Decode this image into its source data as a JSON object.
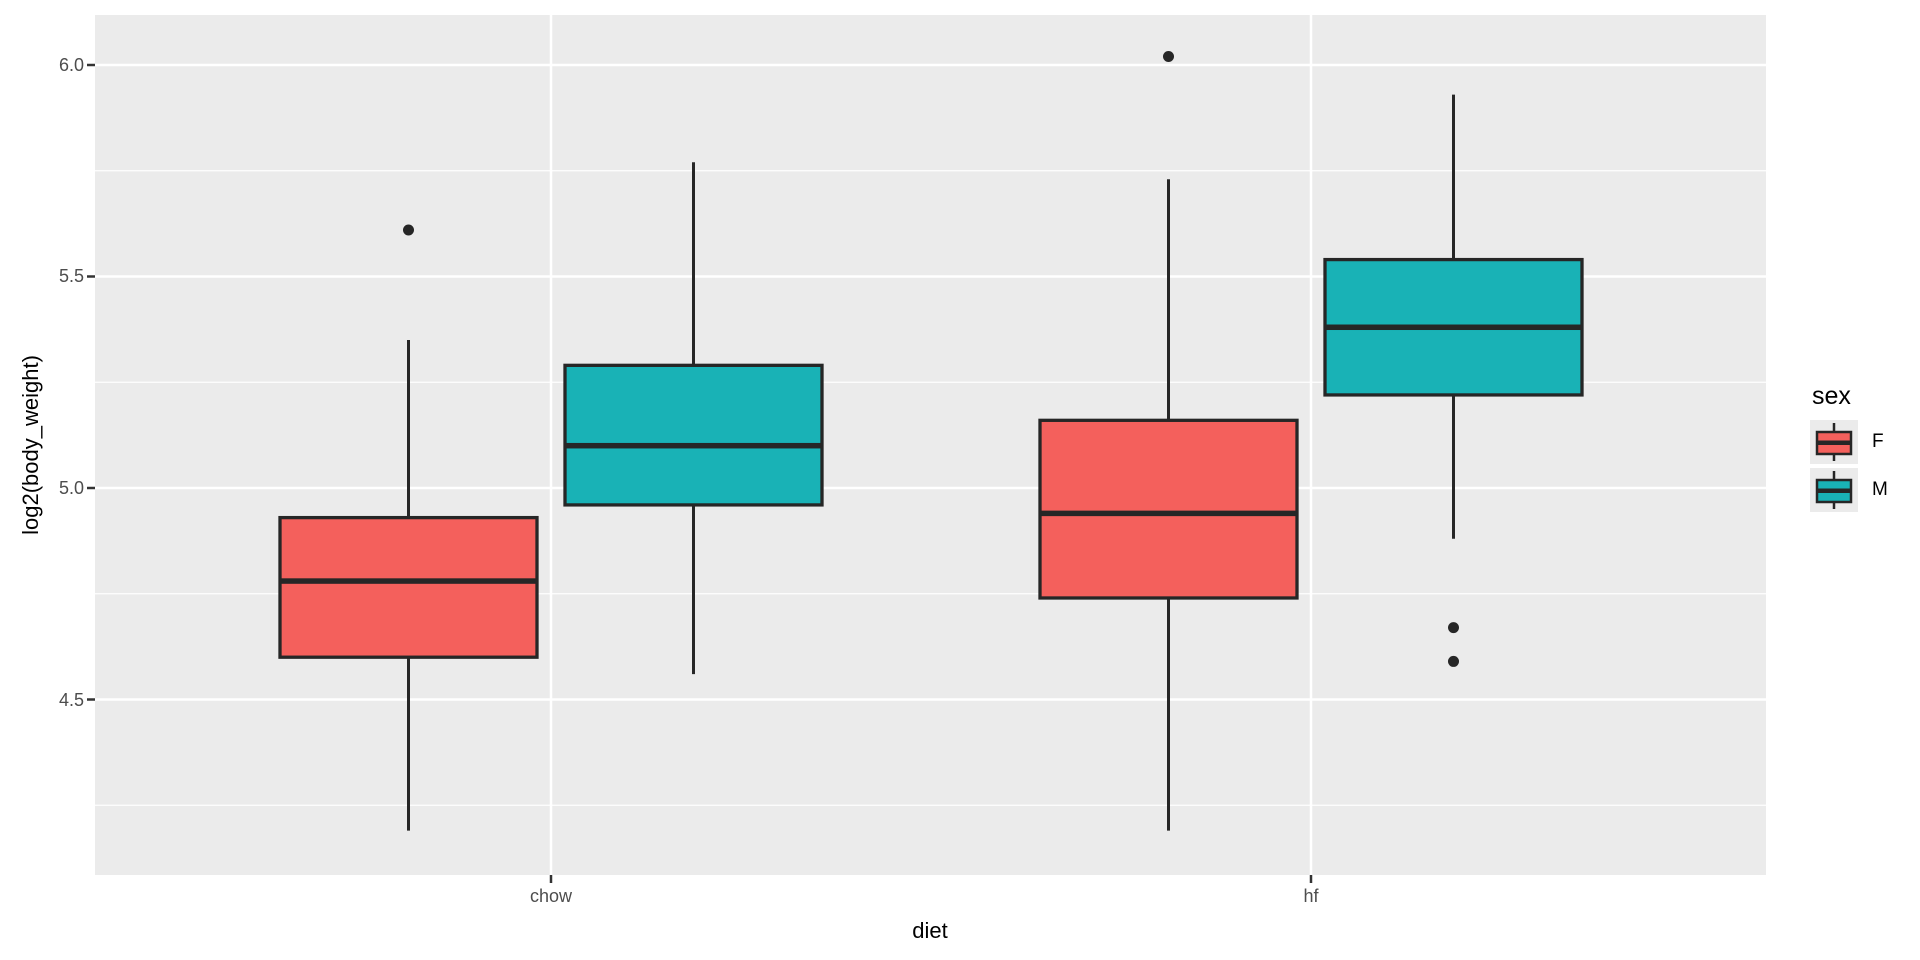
{
  "chart_data": {
    "type": "boxplot",
    "xlabel": "diet",
    "ylabel": "log2(body_weight)",
    "categories": [
      "chow",
      "hf"
    ],
    "groups": [
      "F",
      "M"
    ],
    "y_ticks": [
      "6.0",
      "5.5",
      "5.0",
      "4.5"
    ],
    "y_tick_values": [
      6.0,
      5.5,
      5.0,
      4.5
    ],
    "y_minor_values": [
      5.75,
      5.25,
      4.75,
      4.25
    ],
    "ylim": [
      4.08,
      6.12
    ],
    "grid": true,
    "panel_bg": "#EBEBEB",
    "grid_color": "#FFFFFF",
    "stroke_color": "#262626",
    "outlier_color": "#262626",
    "tick_color": "#333333",
    "axis_text_color": "#4D4D4D",
    "colors": {
      "F": "#F4605C",
      "M": "#19B2B6"
    },
    "series": [
      {
        "category": "chow",
        "group": "F",
        "min": 4.19,
        "q1": 4.6,
        "median": 4.78,
        "q3": 4.93,
        "max": 5.35,
        "outliers": [
          5.61
        ]
      },
      {
        "category": "chow",
        "group": "M",
        "min": 4.56,
        "q1": 4.96,
        "median": 5.1,
        "q3": 5.29,
        "max": 5.77,
        "outliers": []
      },
      {
        "category": "hf",
        "group": "F",
        "min": 4.19,
        "q1": 4.74,
        "median": 4.94,
        "q3": 5.16,
        "max": 5.73,
        "outliers": [
          6.02
        ]
      },
      {
        "category": "hf",
        "group": "M",
        "min": 4.88,
        "q1": 5.22,
        "median": 5.38,
        "q3": 5.54,
        "max": 5.93,
        "outliers": [
          4.67,
          4.59
        ]
      }
    ],
    "legend": {
      "title": "sex",
      "entries": [
        {
          "label": "F",
          "color": "#F4605C"
        },
        {
          "label": "M",
          "color": "#19B2B6"
        }
      ]
    }
  }
}
